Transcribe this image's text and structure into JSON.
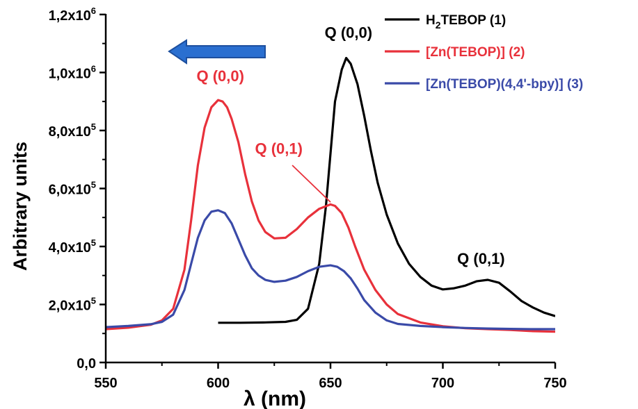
{
  "chart_data": {
    "type": "line",
    "xlabel": "λ (nm)",
    "ylabel": "Arbitrary units",
    "xlim": [
      550,
      750
    ],
    "ylim": [
      0,
      1250000
    ],
    "x_ticks": [
      "550",
      "600",
      "650",
      "700",
      "750"
    ],
    "y_ticks": [
      {
        "mantissa": "0,0",
        "exp": ""
      },
      {
        "mantissa": "2,0x10",
        "exp": "5"
      },
      {
        "mantissa": "4,0x10",
        "exp": "5"
      },
      {
        "mantissa": "6,0x10",
        "exp": "5"
      },
      {
        "mantissa": "8,0x10",
        "exp": "5"
      },
      {
        "mantissa": "1,0x10",
        "exp": "6"
      },
      {
        "mantissa": "1,2x10",
        "exp": "6"
      }
    ],
    "legend_position": "top-right",
    "legend": [
      {
        "pre": "H",
        "sub": "2",
        "post": "TEBOP (1)",
        "color": "#000000"
      },
      {
        "pre": "[Zn(TEBOP)] (2)",
        "sub": "",
        "post": "",
        "color": "#e8313b"
      },
      {
        "pre": "[Zn(TEBOP)(4,4'-bpy)] (3)",
        "sub": "",
        "post": "",
        "color": "#3a4aa8"
      }
    ],
    "annotations": [
      {
        "text": "Q (0,0)",
        "color": "#000000",
        "x": 658,
        "y": 1120000
      },
      {
        "text": "Q (0,1)",
        "color": "#000000",
        "x": 717,
        "y": 340000
      },
      {
        "text": "Q (0,0)",
        "color": "#e8313b",
        "x": 601,
        "y": 970000
      },
      {
        "text": "Q (0,1)",
        "color": "#e8313b",
        "x": 627,
        "y": 720000
      }
    ],
    "arrow_color": "#2a6fd0",
    "series": [
      {
        "color": "#000000",
        "x": [
          600,
          610,
          620,
          630,
          635,
          640,
          645,
          648,
          650,
          652,
          655,
          657,
          659,
          662,
          665,
          668,
          671,
          675,
          680,
          685,
          690,
          695,
          700,
          705,
          710,
          715,
          720,
          725,
          730,
          735,
          740,
          745,
          750
        ],
        "y": [
          137000,
          137000,
          138000,
          140000,
          147000,
          185000,
          340000,
          540000,
          720000,
          900000,
          1010000,
          1050000,
          1030000,
          960000,
          850000,
          730000,
          620000,
          510000,
          410000,
          340000,
          295000,
          265000,
          252000,
          256000,
          265000,
          280000,
          285000,
          275000,
          245000,
          212000,
          190000,
          172000,
          160000
        ]
      },
      {
        "color": "#e8313b",
        "x": [
          550,
          560,
          570,
          575,
          580,
          585,
          588,
          591,
          594,
          597,
          600,
          602,
          604,
          606,
          609,
          612,
          615,
          618,
          621,
          625,
          630,
          635,
          640,
          645,
          650,
          652,
          655,
          658,
          661,
          665,
          670,
          675,
          680,
          690,
          700,
          710,
          720,
          730,
          740,
          750
        ],
        "y": [
          115000,
          120000,
          130000,
          145000,
          185000,
          320000,
          490000,
          680000,
          810000,
          880000,
          905000,
          900000,
          880000,
          840000,
          760000,
          650000,
          555000,
          490000,
          450000,
          428000,
          430000,
          460000,
          500000,
          530000,
          545000,
          540000,
          515000,
          465000,
          400000,
          320000,
          250000,
          200000,
          167000,
          138000,
          125000,
          118000,
          115000,
          112000,
          108000,
          106000
        ]
      },
      {
        "color": "#3a4aa8",
        "x": [
          550,
          560,
          570,
          575,
          580,
          585,
          588,
          591,
          594,
          597,
          600,
          603,
          606,
          609,
          612,
          615,
          618,
          621,
          625,
          630,
          635,
          640,
          645,
          650,
          653,
          656,
          659,
          662,
          665,
          670,
          675,
          680,
          690,
          700,
          710,
          720,
          730,
          740,
          750
        ],
        "y": [
          122000,
          126000,
          132000,
          140000,
          165000,
          250000,
          340000,
          430000,
          490000,
          520000,
          525000,
          515000,
          480000,
          425000,
          370000,
          325000,
          300000,
          285000,
          278000,
          282000,
          295000,
          315000,
          330000,
          335000,
          330000,
          315000,
          290000,
          255000,
          215000,
          172000,
          145000,
          133000,
          126000,
          122000,
          119000,
          117000,
          116000,
          115000,
          115000
        ]
      }
    ]
  }
}
